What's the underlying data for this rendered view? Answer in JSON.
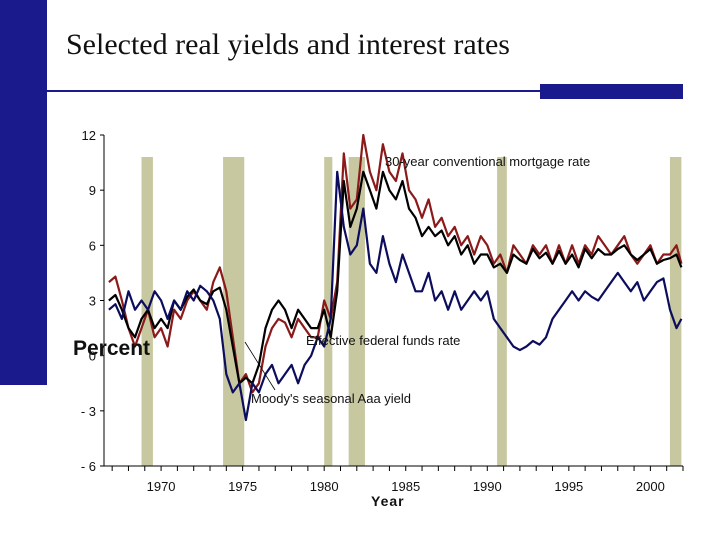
{
  "slide": {
    "title": "Selected real yields and interest rates",
    "accent_color": "#1a1a8c"
  },
  "chart_data": {
    "type": "line",
    "xlabel": "Year",
    "ylabel": "Percent",
    "xlim": [
      1966.5,
      2002
    ],
    "ylim": [
      -6,
      12
    ],
    "x_ticks": [
      1970,
      1975,
      1980,
      1985,
      1990,
      1995,
      2000
    ],
    "y_ticks": [
      12,
      9,
      6,
      3,
      0,
      -3,
      -6
    ],
    "y_tick_labels": [
      "12",
      "9",
      "6",
      "3",
      "0",
      "- 3",
      "- 6"
    ],
    "grid": false,
    "recession_shading": [
      {
        "start": 1968.8,
        "end": 1969.5,
        "color": "#c8c8a0"
      },
      {
        "start": 1973.8,
        "end": 1975.1,
        "color": "#c8c8a0"
      },
      {
        "start": 1980.0,
        "end": 1980.5,
        "color": "#c8c8a0"
      },
      {
        "start": 1981.5,
        "end": 1982.5,
        "color": "#c8c8a0"
      },
      {
        "start": 1990.6,
        "end": 1991.2,
        "color": "#c8c8a0"
      },
      {
        "start": 2001.2,
        "end": 2001.9,
        "color": "#c8c8a0"
      }
    ],
    "series": [
      {
        "name": "30-year conventional mortgage rate",
        "color": "#8b1a1a",
        "x": [
          1966.8,
          1967.2,
          1967.6,
          1968.0,
          1968.4,
          1968.8,
          1969.2,
          1969.6,
          1970.0,
          1970.4,
          1970.8,
          1971.2,
          1971.6,
          1972.0,
          1972.4,
          1972.8,
          1973.2,
          1973.6,
          1974.0,
          1974.4,
          1974.8,
          1975.2,
          1975.6,
          1976.0,
          1976.4,
          1976.8,
          1977.2,
          1977.6,
          1978.0,
          1978.4,
          1978.8,
          1979.2,
          1979.6,
          1980.0,
          1980.4,
          1980.8,
          1981.2,
          1981.6,
          1982.0,
          1982.4,
          1982.8,
          1983.2,
          1983.6,
          1984.0,
          1984.4,
          1984.8,
          1985.2,
          1985.6,
          1986.0,
          1986.4,
          1986.8,
          1987.2,
          1987.6,
          1988.0,
          1988.4,
          1988.8,
          1989.2,
          1989.6,
          1990.0,
          1990.4,
          1990.8,
          1991.2,
          1991.6,
          1992.0,
          1992.4,
          1992.8,
          1993.2,
          1993.6,
          1994.0,
          1994.4,
          1994.8,
          1995.2,
          1995.6,
          1996.0,
          1996.4,
          1996.8,
          1997.2,
          1997.6,
          1998.0,
          1998.4,
          1998.8,
          1999.2,
          1999.6,
          2000.0,
          2000.4,
          2000.8,
          2001.2,
          2001.6,
          2001.9
        ],
        "y": [
          4.0,
          4.3,
          3.0,
          1.5,
          0.5,
          1.5,
          2.5,
          1.0,
          1.5,
          0.5,
          2.5,
          2.0,
          3.0,
          3.5,
          3.0,
          2.5,
          4.0,
          4.8,
          3.5,
          1.0,
          -1.5,
          -1.0,
          -2.0,
          -1.5,
          0.5,
          1.5,
          2.0,
          1.8,
          1.0,
          2.0,
          1.5,
          1.0,
          1.0,
          3.0,
          2.0,
          4.0,
          11.0,
          8.0,
          8.5,
          12.0,
          10.0,
          9.0,
          11.5,
          10.0,
          9.5,
          11.0,
          9.0,
          8.5,
          7.5,
          8.5,
          7.0,
          7.5,
          6.5,
          7.0,
          6.0,
          6.5,
          5.5,
          6.5,
          6.0,
          5.0,
          5.5,
          4.5,
          6.0,
          5.5,
          5.0,
          6.0,
          5.5,
          6.0,
          5.0,
          6.0,
          5.0,
          6.0,
          5.0,
          6.0,
          5.5,
          6.5,
          6.0,
          5.5,
          6.0,
          6.5,
          5.5,
          5.0,
          5.5,
          6.0,
          5.0,
          5.5,
          5.5,
          6.0,
          5.0
        ]
      },
      {
        "name": "Moody's seasonal Aaa yield",
        "color": "#000000",
        "x": [
          1966.8,
          1967.2,
          1967.6,
          1968.0,
          1968.4,
          1968.8,
          1969.2,
          1969.6,
          1970.0,
          1970.4,
          1970.8,
          1971.2,
          1971.6,
          1972.0,
          1972.4,
          1972.8,
          1973.2,
          1973.6,
          1974.0,
          1974.4,
          1974.8,
          1975.2,
          1975.6,
          1976.0,
          1976.4,
          1976.8,
          1977.2,
          1977.6,
          1978.0,
          1978.4,
          1978.8,
          1979.2,
          1979.6,
          1980.0,
          1980.4,
          1980.8,
          1981.2,
          1981.6,
          1982.0,
          1982.4,
          1982.8,
          1983.2,
          1983.6,
          1984.0,
          1984.4,
          1984.8,
          1985.2,
          1985.6,
          1986.0,
          1986.4,
          1986.8,
          1987.2,
          1987.6,
          1988.0,
          1988.4,
          1988.8,
          1989.2,
          1989.6,
          1990.0,
          1990.4,
          1990.8,
          1991.2,
          1991.6,
          1992.0,
          1992.4,
          1992.8,
          1993.2,
          1993.6,
          1994.0,
          1994.4,
          1994.8,
          1995.2,
          1995.6,
          1996.0,
          1996.4,
          1996.8,
          1997.2,
          1997.6,
          1998.0,
          1998.4,
          1998.8,
          1999.2,
          1999.6,
          2000.0,
          2000.4,
          2000.8,
          2001.2,
          2001.6,
          2001.9
        ],
        "y": [
          3.0,
          3.3,
          2.5,
          1.5,
          1.0,
          2.0,
          2.5,
          1.5,
          2.0,
          1.5,
          3.0,
          2.5,
          3.2,
          3.6,
          3.0,
          2.8,
          3.5,
          3.7,
          2.5,
          0.5,
          -1.5,
          -1.2,
          -1.5,
          -0.5,
          1.5,
          2.5,
          3.0,
          2.5,
          1.5,
          2.5,
          2.0,
          1.5,
          1.5,
          2.5,
          1.0,
          3.5,
          9.5,
          7.0,
          8.0,
          10.0,
          9.0,
          8.0,
          10.0,
          9.0,
          8.5,
          9.5,
          8.0,
          7.5,
          6.5,
          7.0,
          6.5,
          6.8,
          6.0,
          6.5,
          5.5,
          6.0,
          5.0,
          5.5,
          5.5,
          4.8,
          5.0,
          4.5,
          5.5,
          5.2,
          5.0,
          5.8,
          5.3,
          5.6,
          5.0,
          5.7,
          5.0,
          5.5,
          4.8,
          5.8,
          5.3,
          5.8,
          5.5,
          5.5,
          5.8,
          6.0,
          5.5,
          5.2,
          5.5,
          5.8,
          5.0,
          5.2,
          5.3,
          5.5,
          4.8
        ]
      },
      {
        "name": "Effective federal funds rate",
        "color": "#0d0d5e",
        "x": [
          1966.8,
          1967.2,
          1967.6,
          1968.0,
          1968.4,
          1968.8,
          1969.2,
          1969.6,
          1970.0,
          1970.4,
          1970.8,
          1971.2,
          1971.6,
          1972.0,
          1972.4,
          1972.8,
          1973.2,
          1973.6,
          1974.0,
          1974.4,
          1974.8,
          1975.2,
          1975.6,
          1976.0,
          1976.4,
          1976.8,
          1977.2,
          1977.6,
          1978.0,
          1978.4,
          1978.8,
          1979.2,
          1979.6,
          1980.0,
          1980.4,
          1980.8,
          1981.2,
          1981.6,
          1982.0,
          1982.4,
          1982.8,
          1983.2,
          1983.6,
          1984.0,
          1984.4,
          1984.8,
          1985.2,
          1985.6,
          1986.0,
          1986.4,
          1986.8,
          1987.2,
          1987.6,
          1988.0,
          1988.4,
          1988.8,
          1989.2,
          1989.6,
          1990.0,
          1990.4,
          1990.8,
          1991.2,
          1991.6,
          1992.0,
          1992.4,
          1992.8,
          1993.2,
          1993.6,
          1994.0,
          1994.4,
          1994.8,
          1995.2,
          1995.6,
          1996.0,
          1996.4,
          1996.8,
          1997.2,
          1997.6,
          1998.0,
          1998.4,
          1998.8,
          1999.2,
          1999.6,
          2000.0,
          2000.4,
          2000.8,
          2001.2,
          2001.6,
          2001.9
        ],
        "y": [
          2.5,
          2.8,
          2.0,
          3.5,
          2.5,
          3.0,
          2.5,
          3.5,
          3.0,
          2.0,
          3.0,
          2.5,
          3.5,
          3.0,
          3.8,
          3.5,
          3.0,
          2.0,
          -1.0,
          -2.0,
          -1.5,
          -3.5,
          -1.5,
          -2.0,
          -1.0,
          -0.5,
          -1.5,
          -1.0,
          -0.5,
          -1.5,
          -0.5,
          0.0,
          1.0,
          0.5,
          2.0,
          10.0,
          7.0,
          5.5,
          6.0,
          8.0,
          5.0,
          4.5,
          6.5,
          5.0,
          4.0,
          5.5,
          4.5,
          3.5,
          3.5,
          4.5,
          3.0,
          3.5,
          2.5,
          3.5,
          2.5,
          3.0,
          3.5,
          3.0,
          3.5,
          2.0,
          1.5,
          1.0,
          0.5,
          0.3,
          0.5,
          0.8,
          0.6,
          1.0,
          2.0,
          2.5,
          3.0,
          3.5,
          3.0,
          3.5,
          3.2,
          3.0,
          3.5,
          4.0,
          4.5,
          4.0,
          3.5,
          4.0,
          3.0,
          3.5,
          4.0,
          4.2,
          2.5,
          1.5,
          2.0
        ]
      }
    ],
    "annotations": [
      {
        "text": "30-year conventional mortgage rate"
      },
      {
        "text": "Effective federal funds rate"
      },
      {
        "text": "Moody's seasonal Aaa yield"
      }
    ]
  }
}
